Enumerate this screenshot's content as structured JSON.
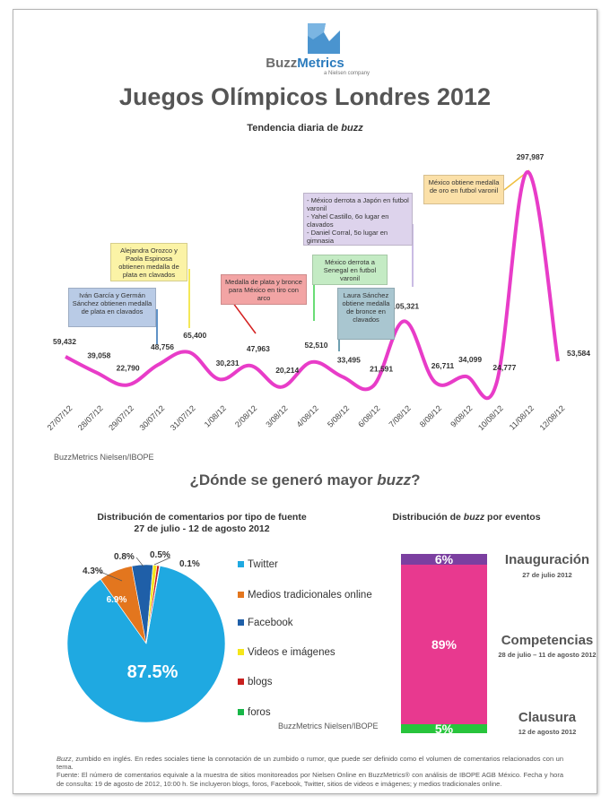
{
  "brand": {
    "name_a": "Buzz",
    "name_b": "Metrics",
    "tagline": "a Nielsen company"
  },
  "title": "Juegos Olímpicos Londres 2012",
  "trend": {
    "subtitle_prefix": "Tendencia diaria de ",
    "subtitle_em": "buzz"
  },
  "colors": {
    "line": "#e83cc8",
    "twitter": "#1fa9e1",
    "medios": "#e3761e",
    "facebook": "#1f5fa8",
    "videos": "#f5e61a",
    "blogs": "#c8201e",
    "foros": "#18b648",
    "inauguracion": "#7b3fa0",
    "competencias": "#e8398f",
    "clausura": "#28c43c"
  },
  "callouts": [
    {
      "text": "Iván García y Germán Sánchez obtienen medalla de plata en clavados",
      "color": "#b9cbe6"
    },
    {
      "text": "Alejandra Orozco y Paola Espinosa obtienen medalla de plata en clavados",
      "color": "#fbf3a6"
    },
    {
      "text": "Medalla de plata y bronce para México en tiro con arco",
      "color": "#f2a4a4"
    },
    {
      "text": "- México derrota a Japón en futbol varonil\n- Yahel Castillo, 6o lugar en clavados\n- Daniel Corral, 5o lugar en gimnasia",
      "color": "#ddd3ec"
    },
    {
      "text": "México derrota a Senegal en futbol varonil",
      "color": "#c4ebc4"
    },
    {
      "text": "Laura Sánchez obtiene medalla de bronce en clavados",
      "color": "#a9c6d0"
    },
    {
      "text": "México obtiene medalla de oro en futbol varonil",
      "color": "#fbe0a8"
    }
  ],
  "chart_data": [
    {
      "type": "line",
      "title": "Tendencia diaria de buzz",
      "x": [
        "27/07/12",
        "28/07/12",
        "29/07/12",
        "30/07/12",
        "31/07/12",
        "1/08/12",
        "2/08/12",
        "3/08/12",
        "4/08/12",
        "5/08/12",
        "6/08/12",
        "7/08/12",
        "8/08/12",
        "9/08/12",
        "10/08/12",
        "11/08/12",
        "12/08/12"
      ],
      "series": [
        {
          "values": [
            59432,
            39058,
            22790,
            48756,
            65400,
            30231,
            47963,
            20214,
            52510,
            33495,
            21591,
            105321,
            26711,
            34099,
            24777,
            297987,
            53584
          ]
        }
      ],
      "data_labels": [
        "59,432",
        "39,058",
        "22,790",
        "48,756",
        "65,400",
        "30,231",
        "47,963",
        "20,214",
        "52,510",
        "33,495",
        "21,591",
        "105,321",
        "26,711",
        "34,099",
        "24,777",
        "297,987",
        "53,584"
      ],
      "source": "BuzzMetrics Nielsen/IBOPE"
    },
    {
      "type": "pie",
      "title_line1": "Distribución de comentarios por tipo de fuente",
      "title_line2": "27 de julio - 12 de agosto 2012",
      "labels": [
        "Twitter",
        "Medios tradicionales online",
        "Facebook",
        "Videos e imágenes",
        "blogs",
        "foros"
      ],
      "values": [
        87.5,
        6.9,
        4.3,
        0.8,
        0.5,
        0.1
      ],
      "value_labels": [
        "87.5%",
        "6.9%",
        "4.3%",
        "0.8%",
        "0.5%",
        "0.1%"
      ],
      "source": "BuzzMetrics Nielsen/IBOPE"
    },
    {
      "type": "bar",
      "stacked": true,
      "title_prefix": "Distribución de ",
      "title_em": "buzz",
      "title_suffix": " por eventos",
      "categories": [
        "Inauguración",
        "Competencias",
        "Clausura"
      ],
      "dates": [
        "27 de julio 2012",
        "28 de julio – 11 de agosto 2012",
        "12 de agosto 2012"
      ],
      "values": [
        6,
        89,
        5
      ],
      "value_labels": [
        "6%",
        "89%",
        "5%"
      ]
    }
  ],
  "section2": {
    "prefix": "¿Dónde se generó mayor ",
    "em": "buzz",
    "suffix": "?"
  },
  "footnote": {
    "em": "Buzz",
    "line1": ", zumbido en inglés. En redes sociales tiene la connotación de un zumbido o rumor, que puede ser definido como el volumen de comentarios relacionados con un tema.",
    "line2": "Fuente: El número de comentarios equivale a la muestra de sitios monitoreados por Nielsen Online en BuzzMetrics® con análisis de IBOPE AGB México. Fecha y hora de consulta: 19 de agosto de 2012, 10:00 h. Se incluyeron blogs, foros, Facebook, Twitter, sitios de videos e imágenes; y medios tradicionales online."
  }
}
